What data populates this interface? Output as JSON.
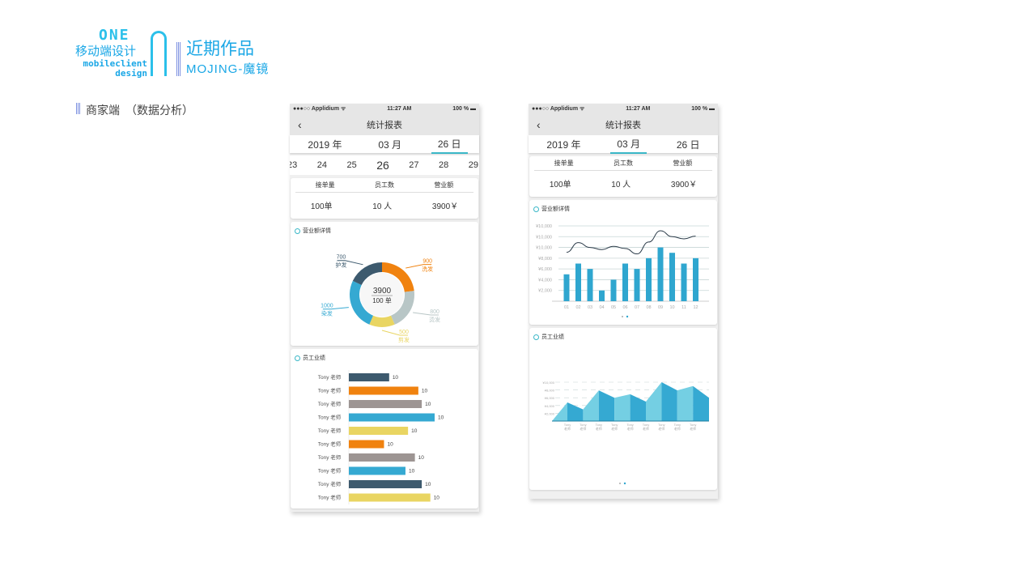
{
  "header": {
    "logo_one": "ONE",
    "logo_cn": "移动端设计",
    "logo_en1": "mobileclient",
    "logo_en2": "design",
    "title": "近期作品",
    "subtitle": "MOJING-魔镜",
    "section": "商家端　（数据分析）"
  },
  "colors": {
    "accent": "#3ab7c7",
    "blue": "#35a9d2",
    "dark": "#3d5a6e",
    "orange": "#f0820f",
    "gray": "#9d9593",
    "yellow": "#e9d562",
    "lightgray": "#b8c6c6"
  },
  "phone": {
    "carrier": "●●●○○ Applidium ᯤ",
    "time": "11:27 AM",
    "battery": "100 % ▬",
    "back": "‹",
    "title": "统计报表",
    "year": "2019 年",
    "month": "03 月",
    "day": "26 日",
    "days": [
      "23",
      "24",
      "25",
      "26",
      "27",
      "28",
      "29"
    ],
    "stats_headers": [
      "接单量",
      "员工数",
      "营业额"
    ],
    "stats_values": [
      "100单",
      "10 人",
      "3900￥"
    ]
  },
  "donut": {
    "title": "营业额详情",
    "center_value": "3900",
    "center_sub": "100 单",
    "slices": [
      {
        "label": "洗发",
        "value": 900,
        "color": "#f0820f"
      },
      {
        "label": "烫发",
        "value": 800,
        "color": "#b8c6c6"
      },
      {
        "label": "剪发",
        "value": 500,
        "color": "#e9d562"
      },
      {
        "label": "染发",
        "value": 1000,
        "color": "#35a9d2"
      },
      {
        "label": "护发",
        "value": 700,
        "color": "#3d5a6e"
      }
    ]
  },
  "hbar": {
    "title": "员工业绩",
    "rows": [
      {
        "name": "Tony 老师",
        "value": "10",
        "level": 47,
        "color": "#3d5a6e"
      },
      {
        "name": "Tony 老师",
        "value": "10",
        "level": 81,
        "color": "#f0820f"
      },
      {
        "name": "Tony 老师",
        "value": "10",
        "level": 85,
        "color": "#9d9593"
      },
      {
        "name": "Tony 老师",
        "value": "10",
        "level": 100,
        "color": "#35a9d2"
      },
      {
        "name": "Tony 老师",
        "value": "10",
        "level": 69,
        "color": "#e9d562"
      },
      {
        "name": "Tony 老师",
        "value": "10",
        "level": 41,
        "color": "#f0820f"
      },
      {
        "name": "Tony 老师",
        "value": "10",
        "level": 77,
        "color": "#9d9593"
      },
      {
        "name": "Tony 老师",
        "value": "10",
        "level": 66,
        "color": "#35a9d2"
      },
      {
        "name": "Tony 老师",
        "value": "10",
        "level": 85,
        "color": "#3d5a6e"
      },
      {
        "name": "Tony 老师",
        "value": "10",
        "level": 95,
        "color": "#e9d562"
      }
    ]
  },
  "chart_data": [
    {
      "type": "bar+line",
      "title": "营业额详情",
      "categories": [
        "01",
        "02",
        "03",
        "04",
        "05",
        "06",
        "07",
        "08",
        "09",
        "10",
        "11",
        "12"
      ],
      "yticks": [
        "¥2,000",
        "¥4,000",
        "¥6,000",
        "¥8,000",
        "¥10,000",
        "¥10,000",
        "¥10,000"
      ],
      "ylim": [
        0,
        14000
      ],
      "series": [
        {
          "name": "bars",
          "type": "bar",
          "values": [
            5000,
            7000,
            6000,
            2000,
            4000,
            7000,
            6000,
            8000,
            10000,
            9000,
            7000,
            8000
          ]
        },
        {
          "name": "line",
          "type": "line",
          "values": [
            9100,
            10900,
            10000,
            9600,
            10200,
            9800,
            8800,
            11000,
            13100,
            12000,
            11600,
            12100
          ]
        }
      ]
    },
    {
      "type": "area",
      "title": "员工业绩",
      "categories": [
        "Tony 老师",
        "Tony 老师",
        "Tony 老师",
        "Tony 老师",
        "Tony 老师",
        "Tony 老师",
        "Tony 老师",
        "Tony 老师",
        "Tony 老师"
      ],
      "yticks": [
        "¥2,000",
        "¥4,000",
        "¥6,000",
        "¥8,000",
        "¥10,000"
      ],
      "ylim": [
        0,
        10000
      ],
      "values": [
        4800,
        3000,
        7900,
        6000,
        6900,
        5000,
        10000,
        7900,
        9000
      ],
      "end_value": 6000
    }
  ]
}
